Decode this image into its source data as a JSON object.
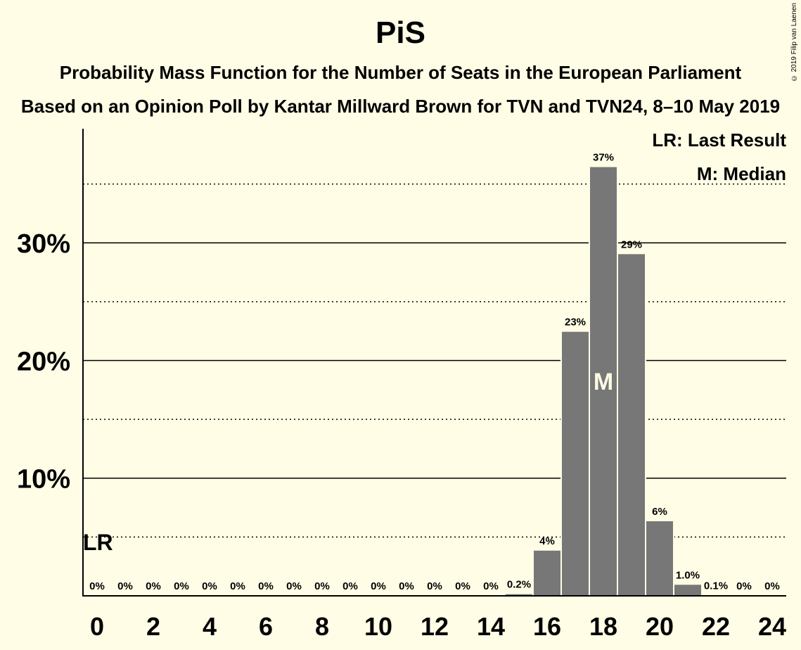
{
  "header": {
    "title": "PiS",
    "subtitle1": "Probability Mass Function for the Number of Seats in the European Parliament",
    "subtitle2": "Based on an Opinion Poll by Kantar Millward Brown for TVN and TVN24, 8–10 May 2019",
    "copyright": "© 2019 Filip van Laenen"
  },
  "legend": {
    "lr": "LR: Last Result",
    "median": "M: Median"
  },
  "colors": {
    "background": "#fffde6",
    "bar": "#777777",
    "bar_stroke": "#fffde6"
  },
  "chart_data": {
    "type": "bar",
    "title": "PiS",
    "xlabel": "",
    "ylabel": "",
    "x": [
      0,
      1,
      2,
      3,
      4,
      5,
      6,
      7,
      8,
      9,
      10,
      11,
      12,
      13,
      14,
      15,
      16,
      17,
      18,
      19,
      20,
      21,
      22,
      23,
      24
    ],
    "values": [
      0,
      0,
      0,
      0,
      0,
      0,
      0,
      0,
      0,
      0,
      0,
      0,
      0,
      0,
      0,
      0.2,
      3.9,
      22.5,
      36.5,
      29.1,
      6.4,
      1.0,
      0.1,
      0,
      0
    ],
    "labels": [
      "0%",
      "0%",
      "0%",
      "0%",
      "0%",
      "0%",
      "0%",
      "0%",
      "0%",
      "0%",
      "0%",
      "0%",
      "0%",
      "0%",
      "0%",
      "0.2%",
      "4%",
      "23%",
      "37%",
      "29%",
      "6%",
      "1.0%",
      "0.1%",
      "0%",
      "0%"
    ],
    "xticks": [
      0,
      2,
      4,
      6,
      8,
      10,
      12,
      14,
      16,
      18,
      20,
      22,
      24
    ],
    "xtick_labels": [
      "0",
      "2",
      "4",
      "6",
      "8",
      "10",
      "12",
      "14",
      "16",
      "18",
      "20",
      "22",
      "24"
    ],
    "yticks": [
      10,
      20,
      30
    ],
    "ytick_labels": [
      "10%",
      "20%",
      "30%"
    ],
    "ylim": [
      0,
      39.7
    ],
    "last_result": 0,
    "last_result_label": "LR",
    "median": 18,
    "median_label": "M",
    "grid": true
  }
}
